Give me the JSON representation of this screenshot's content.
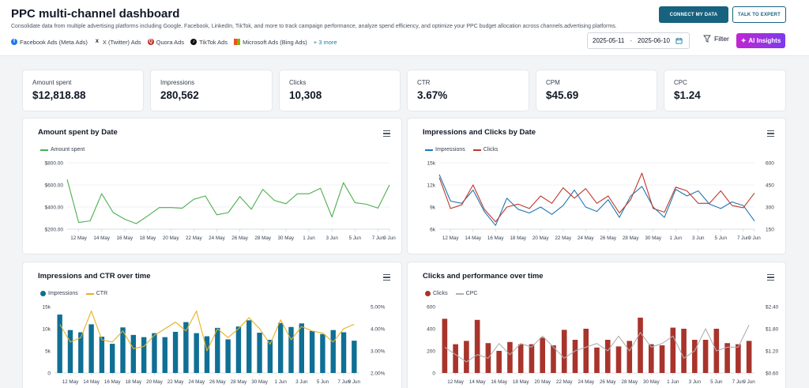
{
  "header": {
    "title": "PPC multi-channel dashboard",
    "subtitle": "Consolidate data from multiple advertising platforms including Google, Facebook, LinkedIn, TikTok, and more to track campaign performance, analyze spend efficiency, and optimize your PPC budget allocation across channels.advertising platforms.",
    "sources": [
      {
        "label": "Facebook Ads (Meta Ads)",
        "icon": "facebook-icon",
        "color": "#1877f2"
      },
      {
        "label": "X (Twitter) Ads",
        "icon": "x-icon",
        "color": "#111111"
      },
      {
        "label": "Quora Ads",
        "icon": "quora-icon",
        "color": "#b92b27"
      },
      {
        "label": "TikTok Ads",
        "icon": "tiktok-icon",
        "color": "#111111"
      },
      {
        "label": "Microsoft Ads (Bing Ads)",
        "icon": "microsoft-icon",
        "color": "#00a4ef"
      }
    ],
    "more": "+ 3 more",
    "connect_button": "CONNECT MY DATA",
    "expert_button": "TALK TO EXPERT",
    "date_start": "2025-05-11",
    "date_sep": "-",
    "date_end": "2025-06-10",
    "filter_label": "Filter",
    "ai_label": "AI Insights"
  },
  "kpis": [
    {
      "label": "Amount spent",
      "value": "$12,818.88"
    },
    {
      "label": "Impressions",
      "value": "280,562"
    },
    {
      "label": "Clicks",
      "value": "10,308"
    },
    {
      "label": "CTR",
      "value": "3.67%"
    },
    {
      "label": "CPM",
      "value": "$45.69"
    },
    {
      "label": "CPC",
      "value": "$1.24"
    }
  ],
  "cards": {
    "spent": {
      "title": "Amount spent by Date"
    },
    "imprclicks": {
      "title": "Impressions and Clicks by Date"
    },
    "imprctr": {
      "title": "Impressions and CTR over time"
    },
    "clickscpc": {
      "title": "Clicks and performance over time"
    }
  },
  "colors": {
    "green": "#4caf50",
    "blue": "#1f77b4",
    "red": "#c0392b",
    "teal": "#0f6f94",
    "gold": "#e8b020",
    "darkred": "#a8342c",
    "grey": "#b0b0b0"
  },
  "chart_data": [
    {
      "id": "spent",
      "type": "line",
      "title": "Amount spent by Date",
      "xticks": [
        "12 May",
        "14 May",
        "16 May",
        "18 May",
        "20 May",
        "22 May",
        "24 May",
        "26 May",
        "28 May",
        "30 May",
        "1 Jun",
        "3 Jun",
        "5 Jun",
        "7 Jun",
        "9 Jun"
      ],
      "ylim": [
        200,
        800
      ],
      "yticks": [
        "$200.00",
        "$400.00",
        "$600.00",
        "$800.00"
      ],
      "series": [
        {
          "name": "Amount spent",
          "color": "#4caf50",
          "values": [
            650,
            260,
            275,
            520,
            350,
            290,
            250,
            320,
            395,
            395,
            390,
            470,
            500,
            330,
            350,
            495,
            380,
            560,
            460,
            430,
            520,
            520,
            570,
            310,
            620,
            440,
            425,
            390,
            600
          ]
        }
      ]
    },
    {
      "id": "imprclicks",
      "type": "line",
      "title": "Impressions and Clicks by Date",
      "xticks": [
        "12 May",
        "14 May",
        "16 May",
        "18 May",
        "20 May",
        "22 May",
        "24 May",
        "26 May",
        "28 May",
        "30 May",
        "1 Jun",
        "3 Jun",
        "5 Jun",
        "7 Jun",
        "9 Jun"
      ],
      "ylim": [
        6000,
        15000
      ],
      "yticks": [
        "6k",
        "9k",
        "12k",
        "15k"
      ],
      "ylim_right": [
        150,
        600
      ],
      "yticks_right": [
        "150",
        "300",
        "450",
        "600"
      ],
      "series": [
        {
          "name": "Impressions",
          "color": "#1f77b4",
          "axis": "left",
          "values": [
            13400,
            9800,
            9500,
            11300,
            8400,
            6500,
            10200,
            8700,
            8200,
            9000,
            8000,
            9200,
            11300,
            9000,
            8400,
            10000,
            7600,
            10500,
            11800,
            9000,
            7600,
            11400,
            10500,
            11200,
            9400,
            8800,
            9700,
            9200,
            7100
          ]
        },
        {
          "name": "Clicks",
          "color": "#c0392b",
          "axis": "left",
          "values": [
            13000,
            8800,
            9300,
            12000,
            8700,
            7000,
            9000,
            9400,
            8800,
            10500,
            9500,
            11600,
            10200,
            11500,
            9500,
            10500,
            8200,
            10000,
            13600,
            8800,
            8300,
            11700,
            11200,
            9500,
            9500,
            11200,
            9200,
            8900,
            10900
          ]
        }
      ]
    },
    {
      "id": "imprctr",
      "type": "bar",
      "title": "Impressions and CTR over time",
      "xticks": [
        "12 May",
        "14 May",
        "16 May",
        "18 May",
        "20 May",
        "22 May",
        "24 May",
        "26 May",
        "28 May",
        "30 May",
        "1 Jun",
        "3 Jun",
        "5 Jun",
        "7 Jun",
        "9 Jun"
      ],
      "ylim": [
        0,
        15000
      ],
      "yticks": [
        "0",
        "5k",
        "10k",
        "15k"
      ],
      "ylim_right": [
        2,
        5
      ],
      "yticks_right": [
        "2.00%",
        "3.00%",
        "4.00%",
        "5.00%"
      ],
      "series": [
        {
          "name": "Impressions",
          "color": "#0f6f94",
          "type": "bar",
          "axis": "left",
          "values": [
            13200,
            9700,
            9200,
            11000,
            8200,
            6600,
            10300,
            8600,
            8100,
            9000,
            8100,
            9300,
            11500,
            9000,
            8300,
            10200,
            7600,
            10500,
            11900,
            9100,
            7500,
            11300,
            10400,
            11200,
            9500,
            8800,
            9700,
            9200,
            7300
          ]
        },
        {
          "name": "CTR",
          "color": "#e8b020",
          "type": "line",
          "axis": "right",
          "values": [
            4.2,
            3.4,
            3.6,
            4.8,
            3.5,
            3.4,
            3.9,
            3.1,
            3.2,
            3.7,
            4.0,
            4.3,
            3.9,
            4.8,
            3.0,
            4.0,
            3.6,
            4.0,
            4.5,
            4.0,
            3.3,
            4.4,
            3.5,
            4.1,
            3.9,
            3.8,
            3.4,
            4.0,
            4.2
          ]
        }
      ]
    },
    {
      "id": "clickscpc",
      "type": "bar",
      "title": "Clicks and performance over time",
      "xticks": [
        "12 May",
        "14 May",
        "16 May",
        "18 May",
        "20 May",
        "22 May",
        "24 May",
        "26 May",
        "28 May",
        "30 May",
        "1 Jun",
        "3 Jun",
        "5 Jun",
        "7 Jun",
        "9 Jun"
      ],
      "ylim": [
        0,
        600
      ],
      "yticks": [
        "0",
        "200",
        "400",
        "600"
      ],
      "ylim_right": [
        0.6,
        2.4
      ],
      "yticks_right": [
        "$0.60",
        "$1.20",
        "$1.80",
        "$2.40"
      ],
      "series": [
        {
          "name": "Clicks",
          "color": "#a8342c",
          "type": "bar",
          "axis": "left",
          "values": [
            490,
            260,
            290,
            480,
            270,
            200,
            280,
            260,
            260,
            320,
            250,
            390,
            300,
            400,
            230,
            300,
            240,
            290,
            500,
            260,
            250,
            410,
            400,
            300,
            300,
            400,
            270,
            260,
            290
          ]
        },
        {
          "name": "CPC",
          "color": "#b0b0b0",
          "type": "line",
          "axis": "right",
          "values": [
            1.3,
            1.1,
            0.9,
            1.1,
            1.0,
            1.4,
            1.1,
            1.4,
            1.3,
            1.6,
            1.3,
            1.0,
            1.2,
            1.3,
            1.4,
            1.2,
            1.6,
            1.2,
            1.7,
            1.3,
            1.4,
            1.6,
            1.0,
            1.2,
            1.8,
            1.2,
            1.3,
            1.3,
            1.9
          ]
        }
      ]
    }
  ]
}
